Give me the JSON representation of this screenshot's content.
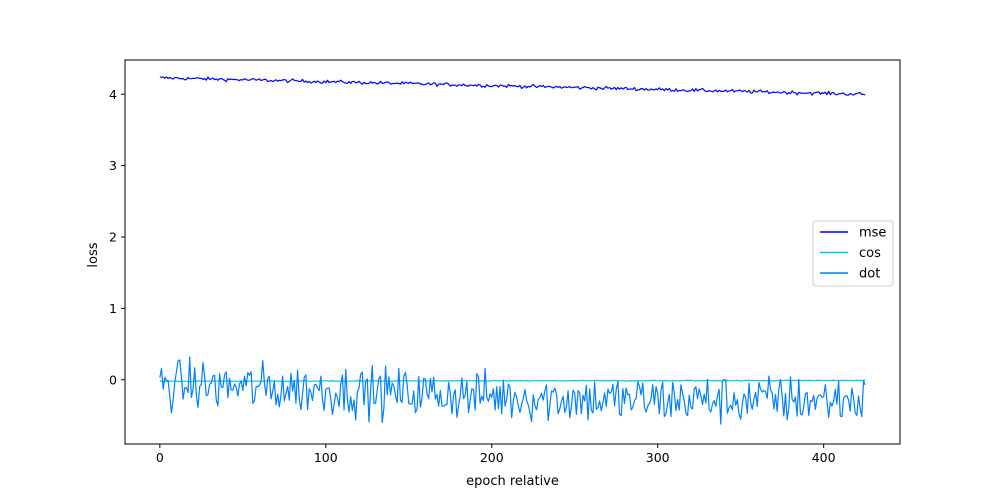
{
  "chart_data": {
    "type": "line",
    "title": "",
    "xlabel": "epoch relative",
    "ylabel": "loss",
    "xlim": [
      -21,
      446
    ],
    "ylim": [
      -0.9,
      4.48
    ],
    "x_ticks": [
      0,
      100,
      200,
      300,
      400
    ],
    "y_ticks": [
      0,
      1,
      2,
      3,
      4
    ],
    "x_count": 426,
    "grid": false,
    "legend_position": "center-right",
    "series": [
      {
        "name": "mse",
        "color": "#0000ff",
        "start": 4.23,
        "end": 4.0,
        "noise": 0.012,
        "shape": "linear"
      },
      {
        "name": "cos",
        "color": "#00bfff",
        "start": -0.02,
        "end": -0.01,
        "noise": 0.003,
        "shape": "flat"
      },
      {
        "name": "dot",
        "color": "#0080ff",
        "start": -0.06,
        "end": -0.28,
        "noise": 0.17,
        "shape": "noisy"
      }
    ]
  }
}
